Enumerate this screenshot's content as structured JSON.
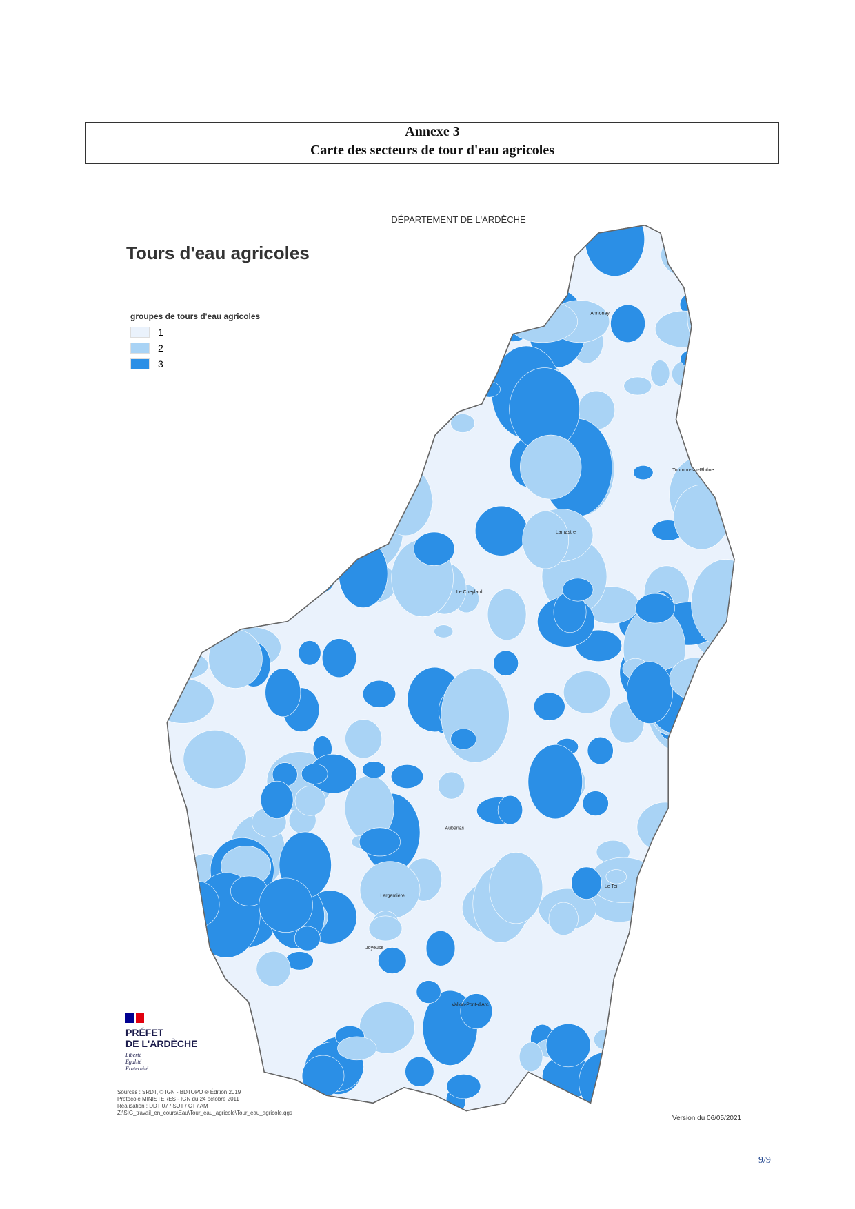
{
  "header": {
    "title": "Annexe 3",
    "subtitle": "Carte des secteurs de tour d'eau agricoles"
  },
  "map": {
    "department": "DÉPARTEMENT DE L'ARDÈCHE",
    "title": "Tours d'eau agricoles",
    "legend": {
      "title": "groupes de tours d'eau agricoles",
      "items": [
        {
          "label": "1",
          "color": "#eaf2fc"
        },
        {
          "label": "2",
          "color": "#a9d3f5"
        },
        {
          "label": "3",
          "color": "#2b8fe6"
        }
      ]
    },
    "places": [
      "Annonay",
      "Tournon-sur-Rhône",
      "Lamastre",
      "Le Cheylard",
      "Aubenas",
      "Le Teil",
      "Largentière",
      "Joyeuse",
      "Vallon-Pont-d'Arc"
    ],
    "logo": {
      "line1": "PRÉFET",
      "line2": "DE L'ARDÈCHE",
      "motto": [
        "Liberté",
        "Égalité",
        "Fraternité"
      ]
    },
    "sources": [
      "Sources : SRDT, © IGN - BDTOPO ® Édition 2019",
      "Protocole MINISTERES - IGN du 24 octobre 2011",
      "Réalisation : DDT 07 / SUT / CT / AM",
      "Z:\\SIG_travail_en_cours\\Eau\\Tour_eau_agricole\\Tour_eau_agricole.qgs"
    ],
    "version": "Version du 06/05/2021"
  },
  "footer": {
    "page": "9/9"
  }
}
